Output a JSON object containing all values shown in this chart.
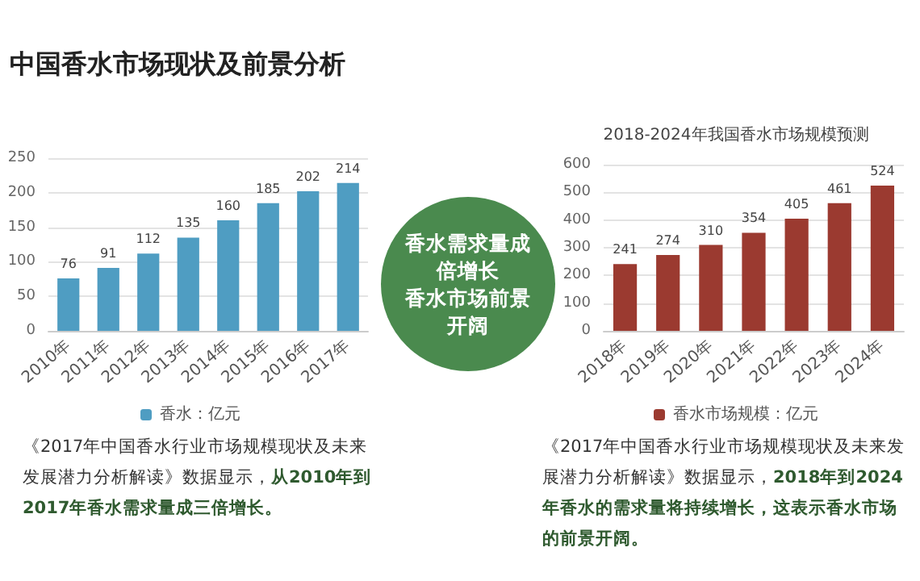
{
  "chart_data": [
    {
      "type": "other",
      "title": "中国香水市场现状及前景分析",
      "annotations": [
        "香水需求量成倍增长",
        "香水市场前景开阔"
      ]
    },
    {
      "type": "bar",
      "categories": [
        "2010年",
        "2011年",
        "2012年",
        "2013年",
        "2014年",
        "2015年",
        "2016年",
        "2017年"
      ],
      "series": [
        {
          "name": "香水：亿元",
          "color": "#4f9dc2",
          "values": [
            76,
            91,
            112,
            135,
            160,
            185,
            202,
            214
          ]
        }
      ],
      "ylim": [
        0,
        250
      ],
      "yticks": [
        0,
        50,
        100,
        150,
        200,
        250
      ],
      "grid": "y",
      "legend": "bottom",
      "data_labels": true,
      "annotations": [
        "《2017年中国香水行业市场规模现状及未来发展潜力分析解读》数据显示，",
        "从2010年到2017年香水需求量成三倍增长。"
      ]
    },
    {
      "type": "bar",
      "title": "2018-2024年我国香水市场规模预测",
      "categories": [
        "2018年",
        "2019年",
        "2020年",
        "2021年",
        "2022年",
        "2023年",
        "2024年"
      ],
      "series": [
        {
          "name": "香水市场规模：亿元",
          "color": "#9b3a30",
          "values": [
            241,
            274,
            310,
            354,
            405,
            461,
            524
          ]
        }
      ],
      "ylim": [
        0,
        600
      ],
      "yticks": [
        0,
        100,
        200,
        300,
        400,
        500,
        600
      ],
      "grid": "y",
      "legend": "bottom",
      "data_labels": true,
      "annotations": [
        "《2017年中国香水行业市场规模现状及未来发展潜力分析解读》数据显示，",
        "2018年到2024年香水的需求量将持续增长，这表示香水市场的前景开阔。"
      ]
    }
  ]
}
